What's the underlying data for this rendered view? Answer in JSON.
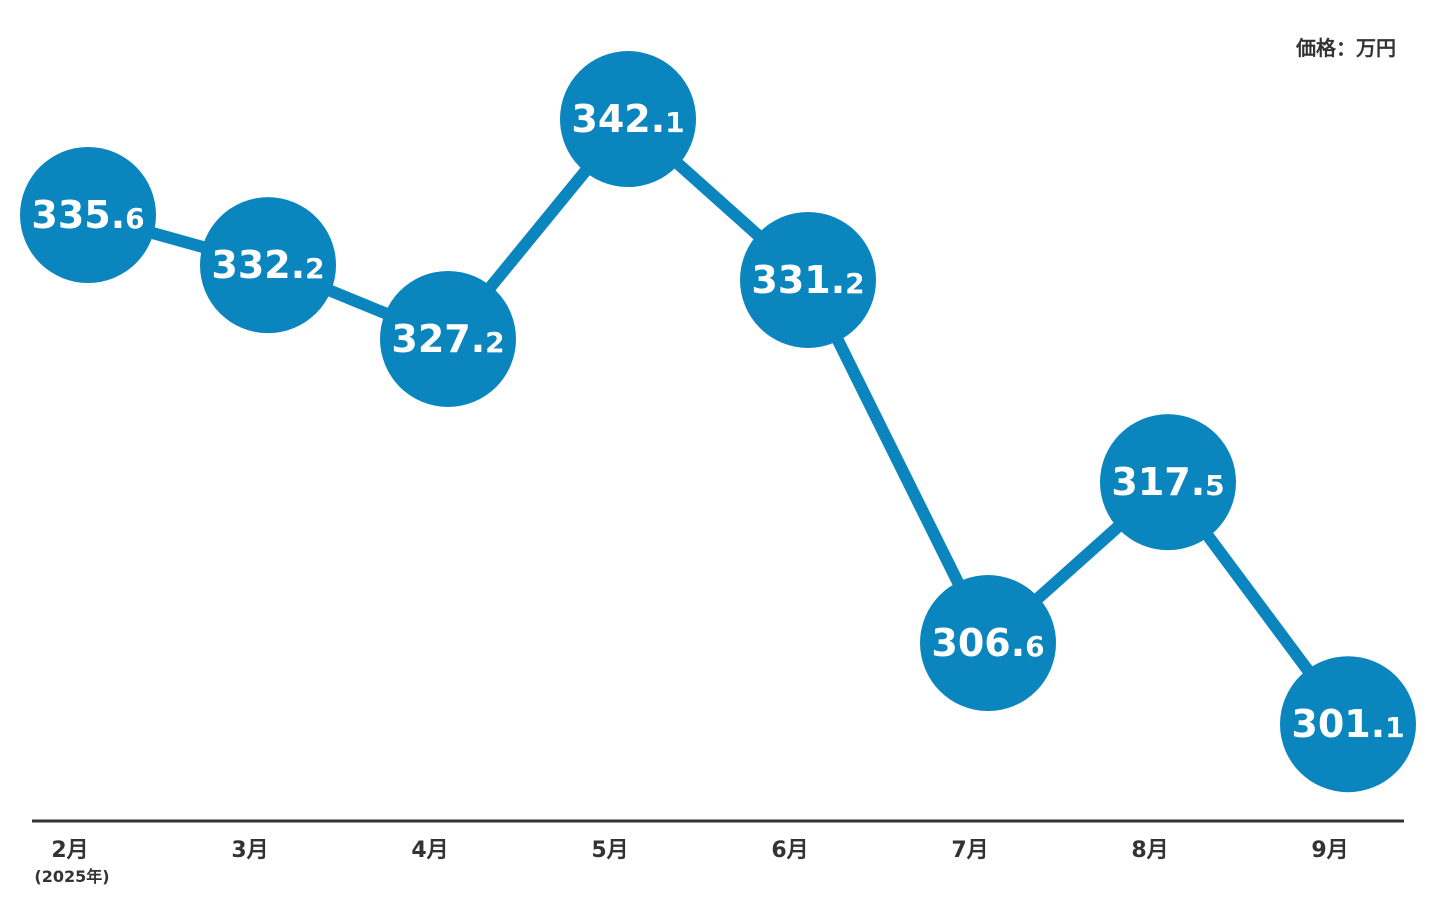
{
  "unit_label": "価格：万円",
  "colors": {
    "series": "#0a85bd",
    "axis": "#333333",
    "label_text": "#ffffff"
  },
  "chart_data": {
    "type": "line",
    "categories": [
      "2月",
      "3月",
      "4月",
      "5月",
      "6月",
      "7月",
      "8月",
      "9月"
    ],
    "category_sub": [
      "(2025年)",
      "",
      "",
      "",
      "",
      "",
      "",
      ""
    ],
    "values": [
      335.6,
      332.2,
      327.2,
      342.1,
      331.2,
      306.6,
      317.5,
      301.1
    ],
    "value_labels": [
      "335.6",
      "332.2",
      "327.2",
      "342.1",
      "331.2",
      "306.6",
      "317.5",
      "301.1"
    ],
    "ylabel": "価格：万円",
    "grid": false,
    "legend": "none"
  }
}
